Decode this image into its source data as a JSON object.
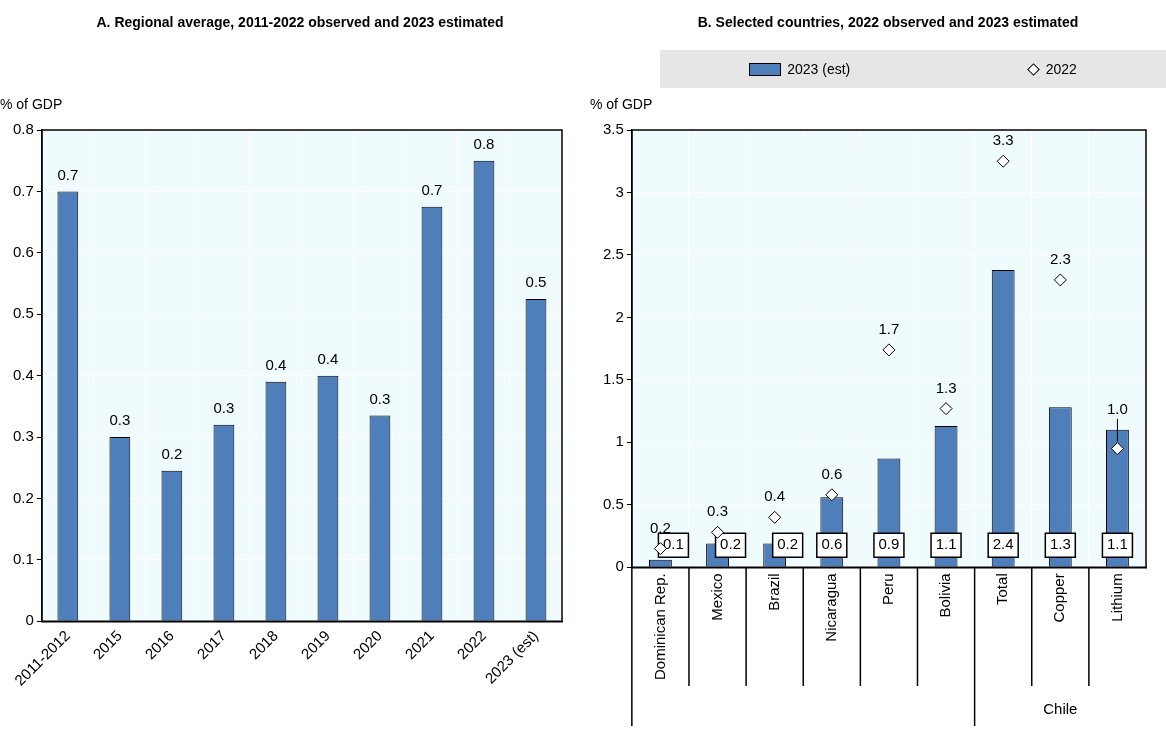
{
  "chart_data": [
    {
      "type": "bar",
      "title": "A. Regional average, 2011-2022 observed and 2023 estimated",
      "ylabel": "% of GDP",
      "categories": [
        "2011-2012",
        "2015",
        "2016",
        "2017",
        "2018",
        "2019",
        "2020",
        "2021",
        "2022",
        "2023 (est)"
      ],
      "values": [
        0.7,
        0.3,
        0.245,
        0.32,
        0.39,
        0.4,
        0.335,
        0.675,
        0.75,
        0.525
      ],
      "value_labels": [
        "0.7",
        "0.3",
        "0.2",
        "0.3",
        "0.4",
        "0.4",
        "0.3",
        "0.7",
        "0.8",
        "0.5"
      ],
      "color": "#4f7fbb",
      "ylim": [
        0,
        0.8
      ],
      "yticks": [
        0,
        0.1,
        0.2,
        0.3,
        0.4,
        0.5,
        0.6,
        0.7,
        0.8
      ],
      "grid": true
    },
    {
      "type": "bar",
      "title": "B. Selected countries, 2022 observed and 2023 estimated",
      "ylabel": "% of GDP",
      "categories": [
        "Dominican Rep.",
        "Mexico",
        "Brazil",
        "Nicaragua",
        "Peru",
        "Bolivia",
        "Total",
        "Copper",
        "Lithium"
      ],
      "series": [
        {
          "name": "2023 (est)",
          "color": "#4f7fbb",
          "values": [
            0.06,
            0.19,
            0.19,
            0.56,
            0.87,
            1.13,
            2.38,
            1.28,
            1.1
          ],
          "value_labels": [
            "0.1",
            "0.2",
            "0.2",
            "0.6",
            "0.9",
            "1.1",
            "2.4",
            "1.3",
            "1.1"
          ]
        },
        {
          "name": "2022",
          "type": "scatter",
          "marker": "diamond",
          "color": "#ffffff",
          "values": [
            0.15,
            0.28,
            0.4,
            0.58,
            1.74,
            1.27,
            3.25,
            2.3,
            0.95
          ],
          "value_labels": [
            "0.2",
            "0.3",
            "0.4",
            "0.6",
            "1.7",
            "1.3",
            "3.3",
            "2.3",
            "1.0"
          ]
        }
      ],
      "annotations": [
        "Chile"
      ],
      "ylim": [
        0,
        3.5
      ],
      "yticks": [
        0,
        0.5,
        1,
        1.5,
        2,
        2.5,
        3,
        3.5
      ],
      "grid": true,
      "legend": "top"
    }
  ]
}
